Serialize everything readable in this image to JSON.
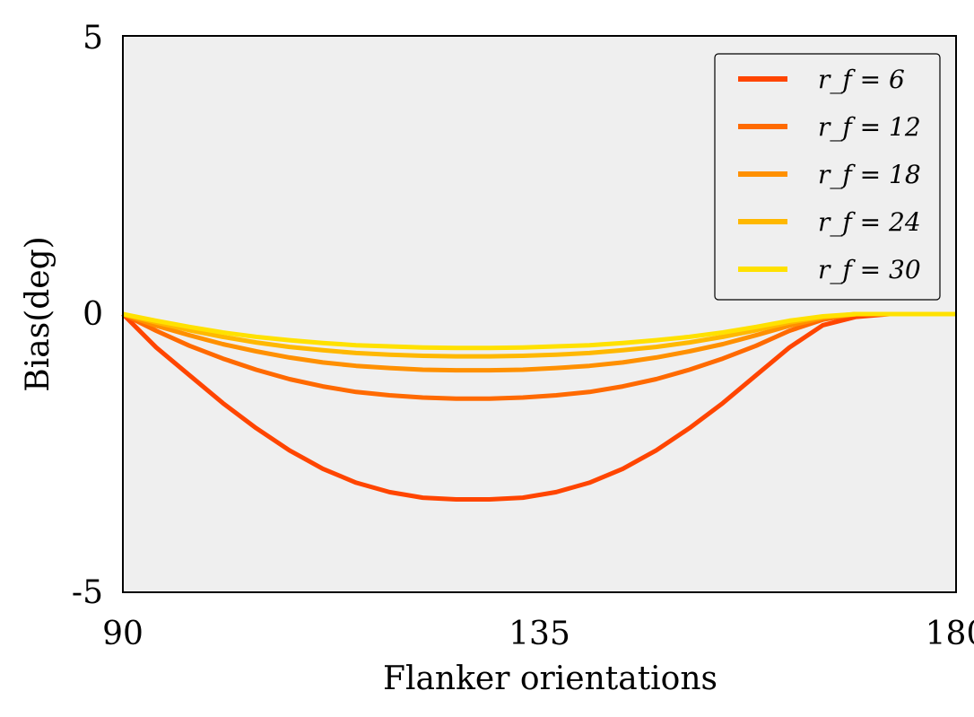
{
  "chart_data": {
    "type": "line",
    "title": "",
    "xlabel": "Flanker orientations",
    "ylabel": "Bias(deg)",
    "xlim": [
      90,
      180
    ],
    "ylim": [
      -5,
      5
    ],
    "xticks": [
      90,
      135,
      180
    ],
    "xtick_labels": [
      "90",
      "135",
      "180"
    ],
    "yticks": [
      -5,
      0,
      5
    ],
    "ytick_labels": [
      "-5",
      "0",
      "5"
    ],
    "grid": false,
    "legend_position": "top-right",
    "plot_background": "#efefef",
    "x": [
      90,
      93.6,
      97.2,
      100.8,
      104.4,
      108,
      111.6,
      115.2,
      118.8,
      122.4,
      126,
      129.6,
      133.2,
      136.8,
      140.4,
      144,
      147.6,
      151.2,
      154.8,
      158.4,
      162,
      165.6,
      169.2,
      172.8,
      176.4,
      180
    ],
    "series": [
      {
        "name": "r_f = 6",
        "legend_label": "r_f = 6",
        "color": "#ff4500",
        "values": [
          0,
          -0.6,
          -1.1,
          -1.6,
          -2.05,
          -2.45,
          -2.78,
          -3.03,
          -3.2,
          -3.3,
          -3.33,
          -3.33,
          -3.3,
          -3.2,
          -3.03,
          -2.78,
          -2.45,
          -2.05,
          -1.6,
          -1.1,
          -0.6,
          -0.2,
          -0.05,
          0,
          0,
          0
        ]
      },
      {
        "name": "r_f = 12",
        "legend_label": "r_f = 12",
        "color": "#ff6a00",
        "values": [
          0,
          -0.3,
          -0.57,
          -0.8,
          -1.0,
          -1.17,
          -1.3,
          -1.4,
          -1.46,
          -1.5,
          -1.52,
          -1.52,
          -1.5,
          -1.46,
          -1.4,
          -1.3,
          -1.17,
          -1.0,
          -0.8,
          -0.57,
          -0.3,
          -0.1,
          0,
          0,
          0,
          0
        ]
      },
      {
        "name": "r_f = 18",
        "legend_label": "r_f = 18",
        "color": "#ff9000",
        "values": [
          0,
          -0.21,
          -0.38,
          -0.54,
          -0.67,
          -0.78,
          -0.87,
          -0.93,
          -0.97,
          -1.0,
          -1.01,
          -1.01,
          -1.0,
          -0.97,
          -0.93,
          -0.87,
          -0.78,
          -0.67,
          -0.54,
          -0.38,
          -0.21,
          -0.07,
          0,
          0,
          0,
          0
        ]
      },
      {
        "name": "r_f = 24",
        "legend_label": "r_f = 24",
        "color": "#ffb800",
        "values": [
          0,
          -0.15,
          -0.29,
          -0.41,
          -0.51,
          -0.59,
          -0.65,
          -0.7,
          -0.73,
          -0.75,
          -0.76,
          -0.76,
          -0.75,
          -0.73,
          -0.7,
          -0.65,
          -0.59,
          -0.51,
          -0.41,
          -0.29,
          -0.15,
          -0.05,
          0,
          0,
          0,
          0
        ]
      },
      {
        "name": "r_f = 30",
        "legend_label": "r_f = 30",
        "color": "#ffe100",
        "values": [
          0,
          -0.12,
          -0.23,
          -0.33,
          -0.41,
          -0.47,
          -0.52,
          -0.56,
          -0.58,
          -0.6,
          -0.61,
          -0.61,
          -0.6,
          -0.58,
          -0.56,
          -0.52,
          -0.47,
          -0.41,
          -0.33,
          -0.23,
          -0.12,
          -0.04,
          0,
          0,
          0,
          0
        ]
      }
    ]
  }
}
